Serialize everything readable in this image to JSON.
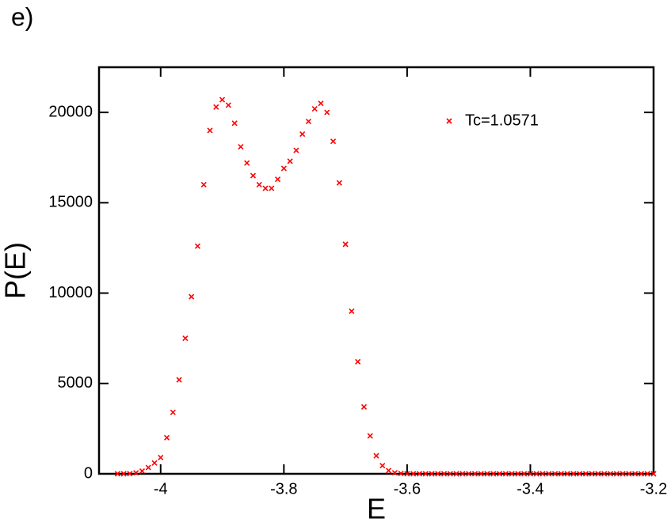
{
  "chart_data": {
    "type": "scatter",
    "title": "e)",
    "x_label": "E",
    "y_label": "P(E)",
    "series": [
      {
        "name": "Tc=1.0571",
        "color": "#ff0000",
        "x": [
          -4.07,
          -4.06,
          -4.05,
          -4.04,
          -4.03,
          -4.02,
          -4.01,
          -4.0,
          -3.99,
          -3.98,
          -3.97,
          -3.96,
          -3.95,
          -3.94,
          -3.93,
          -3.92,
          -3.91,
          -3.9,
          -3.89,
          -3.88,
          -3.87,
          -3.86,
          -3.85,
          -3.84,
          -3.83,
          -3.82,
          -3.81,
          -3.8,
          -3.79,
          -3.78,
          -3.77,
          -3.76,
          -3.75,
          -3.74,
          -3.73,
          -3.72,
          -3.71,
          -3.7,
          -3.69,
          -3.68,
          -3.67,
          -3.66,
          -3.65,
          -3.64,
          -3.63,
          -3.62,
          -3.61,
          -3.6,
          -3.59,
          -3.58,
          -3.57,
          -3.56,
          -3.55,
          -3.54,
          -3.53,
          -3.52,
          -3.51,
          -3.5,
          -3.49,
          -3.48,
          -3.47,
          -3.46,
          -3.45,
          -3.44,
          -3.43,
          -3.42,
          -3.41,
          -3.4,
          -3.39,
          -3.38,
          -3.37,
          -3.36,
          -3.35,
          -3.34,
          -3.33,
          -3.32,
          -3.31,
          -3.3,
          -3.29,
          -3.28,
          -3.27,
          -3.26,
          -3.25,
          -3.24,
          -3.23,
          -3.22,
          -3.21,
          -3.2
        ],
        "values": [
          0,
          0,
          10,
          50,
          150,
          350,
          600,
          900,
          2000,
          3400,
          5200,
          7500,
          9800,
          12600,
          16000,
          19000,
          20300,
          20700,
          20400,
          19400,
          18100,
          17200,
          16500,
          16000,
          15800,
          15800,
          16300,
          16900,
          17300,
          17900,
          18800,
          19500,
          20200,
          20500,
          20000,
          18400,
          16100,
          12700,
          9000,
          6200,
          3700,
          2100,
          1000,
          450,
          180,
          60,
          20,
          5,
          0,
          0,
          0,
          0,
          0,
          0,
          0,
          0,
          0,
          0,
          0,
          0,
          0,
          0,
          0,
          0,
          0,
          0,
          0,
          0,
          0,
          0,
          0,
          0,
          0,
          0,
          0,
          0,
          0,
          0,
          0,
          0,
          0,
          0,
          0,
          0,
          0,
          0,
          0,
          0
        ]
      }
    ],
    "xlim": [
      -4.1,
      -3.2
    ],
    "xticks": [
      -4,
      -3.8,
      -3.6,
      -3.4,
      -3.2
    ],
    "ylim": [
      0,
      22500
    ],
    "yticks": [
      0,
      5000,
      10000,
      15000,
      20000
    ],
    "legend": "upper right",
    "grid": false
  }
}
